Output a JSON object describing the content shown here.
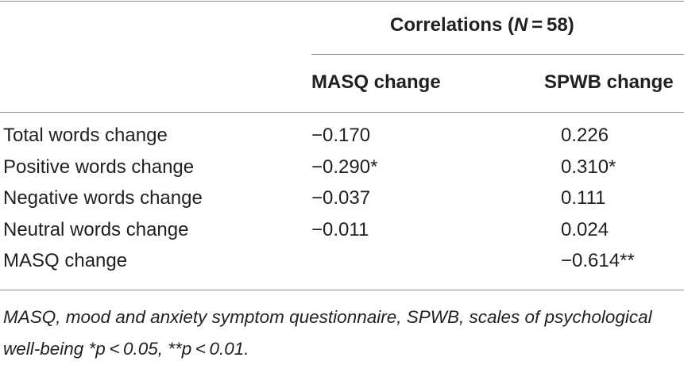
{
  "table": {
    "group_header": {
      "prefix": "Correlations (",
      "n_symbol": "N",
      "suffix": " = 58)"
    },
    "columns": [
      "MASQ change",
      "SPWB change"
    ],
    "rows": [
      {
        "label": "Total words change",
        "masq": "−0.170",
        "spwb": "0.226"
      },
      {
        "label": "Positive words change",
        "masq": "−0.290*",
        "spwb": "0.310*"
      },
      {
        "label": "Negative words change",
        "masq": "−0.037",
        "spwb": "0.111"
      },
      {
        "label": "Neutral words change",
        "masq": "−0.011",
        "spwb": "0.024"
      },
      {
        "label": "MASQ change",
        "masq": "",
        "spwb": "−0.614**"
      }
    ],
    "footnote": "MASQ, mood and anxiety symptom questionnaire, SPWB, scales of psychological well-being *p < 0.05, **p < 0.01."
  }
}
